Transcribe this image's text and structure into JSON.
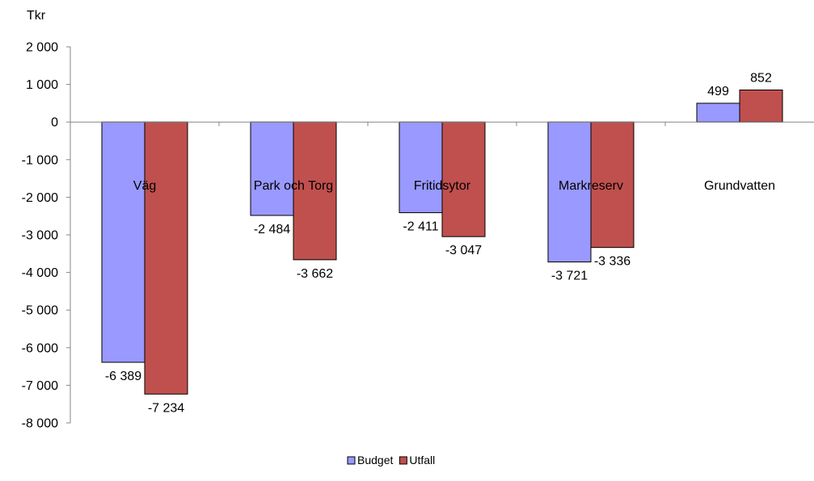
{
  "chart_data": {
    "type": "bar",
    "unit_label": "Tkr",
    "categories": [
      "Väg",
      "Park och Torg",
      "Fritidsytor",
      "Markreserv",
      "Grundvatten"
    ],
    "series": [
      {
        "name": "Budget",
        "color": "#9999ff",
        "values": [
          -6389,
          -2484,
          -2411,
          -3721,
          499
        ],
        "labels": [
          "-6 389",
          "-2 484",
          "-2 411",
          "-3 721",
          "499"
        ]
      },
      {
        "name": "Utfall",
        "color": "#c0504d",
        "values": [
          -7234,
          -3662,
          -3047,
          -3336,
          852
        ],
        "labels": [
          "-7 234",
          "-3 662",
          "-3 047",
          "-3 336",
          "852"
        ]
      }
    ],
    "ylim": [
      -8000,
      2000
    ],
    "yticks": [
      2000,
      1000,
      0,
      -1000,
      -2000,
      -3000,
      -4000,
      -5000,
      -6000,
      -7000,
      -8000
    ],
    "ytick_labels": [
      "2 000",
      "1 000",
      "0",
      "-1 000",
      "-2 000",
      "-3 000",
      "-4 000",
      "-5 000",
      "-6 000",
      "-7 000",
      "-8 000"
    ],
    "grid": false,
    "legend_position": "bottom"
  }
}
